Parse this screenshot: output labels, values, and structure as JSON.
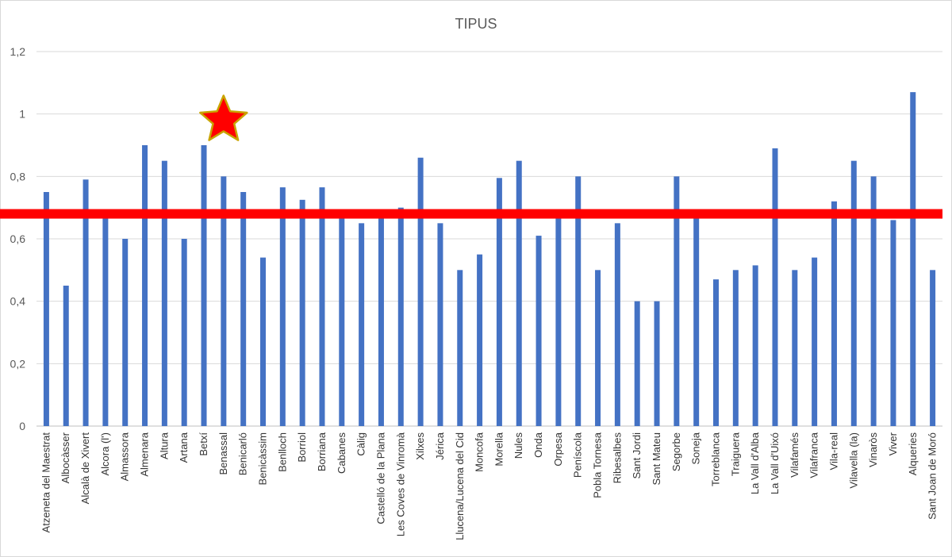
{
  "chart_data": {
    "type": "bar",
    "title": "TIPUS",
    "xlabel": "",
    "ylabel": "",
    "ylim": [
      0,
      1.2
    ],
    "yticks": [
      0,
      0.2,
      0.4,
      0.6,
      0.8,
      1,
      1.2
    ],
    "ytick_labels": [
      "0",
      "0,2",
      "0,4",
      "0,6",
      "0,8",
      "1",
      "1,2"
    ],
    "grid": true,
    "legend": "none",
    "bar_color": "#4472C4",
    "categories": [
      "Atzeneta del Maestrat",
      "Albocàsser",
      "Alcalà de Xivert",
      "Alcora (l')",
      "Almassora",
      "Almenara",
      "Altura",
      "Artana",
      "Betxí",
      "Benassal",
      "Benicarló",
      "Benicàssim",
      "Benlloch",
      "Borriol",
      "Borriana",
      "Cabanes",
      "Càlig",
      "Castelló de la Plana",
      "Les Coves de Vinromà",
      "Xilxes",
      "Jérica",
      "Llucena/Lucena del Cid",
      "Moncofa",
      "Morella",
      "Nules",
      "Onda",
      "Orpesa",
      "Peníscola",
      "Pobla Tornesa",
      "Ribesalbes",
      "Sant Jordi",
      "Sant Mateu",
      "Segorbe",
      "Soneja",
      "Torreblanca",
      "Traiguera",
      "La Vall d'Alba",
      "La Vall d'Uixó",
      "Vilafamés",
      "Vilafranca",
      "Vila-real",
      "Vilavella (la)",
      "Vinaròs",
      "Viver",
      "Alqueries",
      "Sant Joan de Moró"
    ],
    "values": [
      0.75,
      0.45,
      0.79,
      0.67,
      0.6,
      0.9,
      0.85,
      0.6,
      0.9,
      0.8,
      0.75,
      0.54,
      0.765,
      0.725,
      0.765,
      0.67,
      0.65,
      0.67,
      0.7,
      0.86,
      0.65,
      0.5,
      0.55,
      0.795,
      0.85,
      0.61,
      0.67,
      0.8,
      0.5,
      0.65,
      0.4,
      0.4,
      0.8,
      0.67,
      0.47,
      0.5,
      0.515,
      0.89,
      0.5,
      0.54,
      0.72,
      0.85,
      0.8,
      0.66,
      1.07,
      0.5
    ],
    "annotations": [
      {
        "type": "horizontal-line",
        "value": 0.68,
        "color": "#ff0000"
      },
      {
        "type": "star-marker",
        "category": "Benassal",
        "value": 0.98,
        "fill": "#ff0000",
        "outline": "#c9a400"
      }
    ]
  }
}
